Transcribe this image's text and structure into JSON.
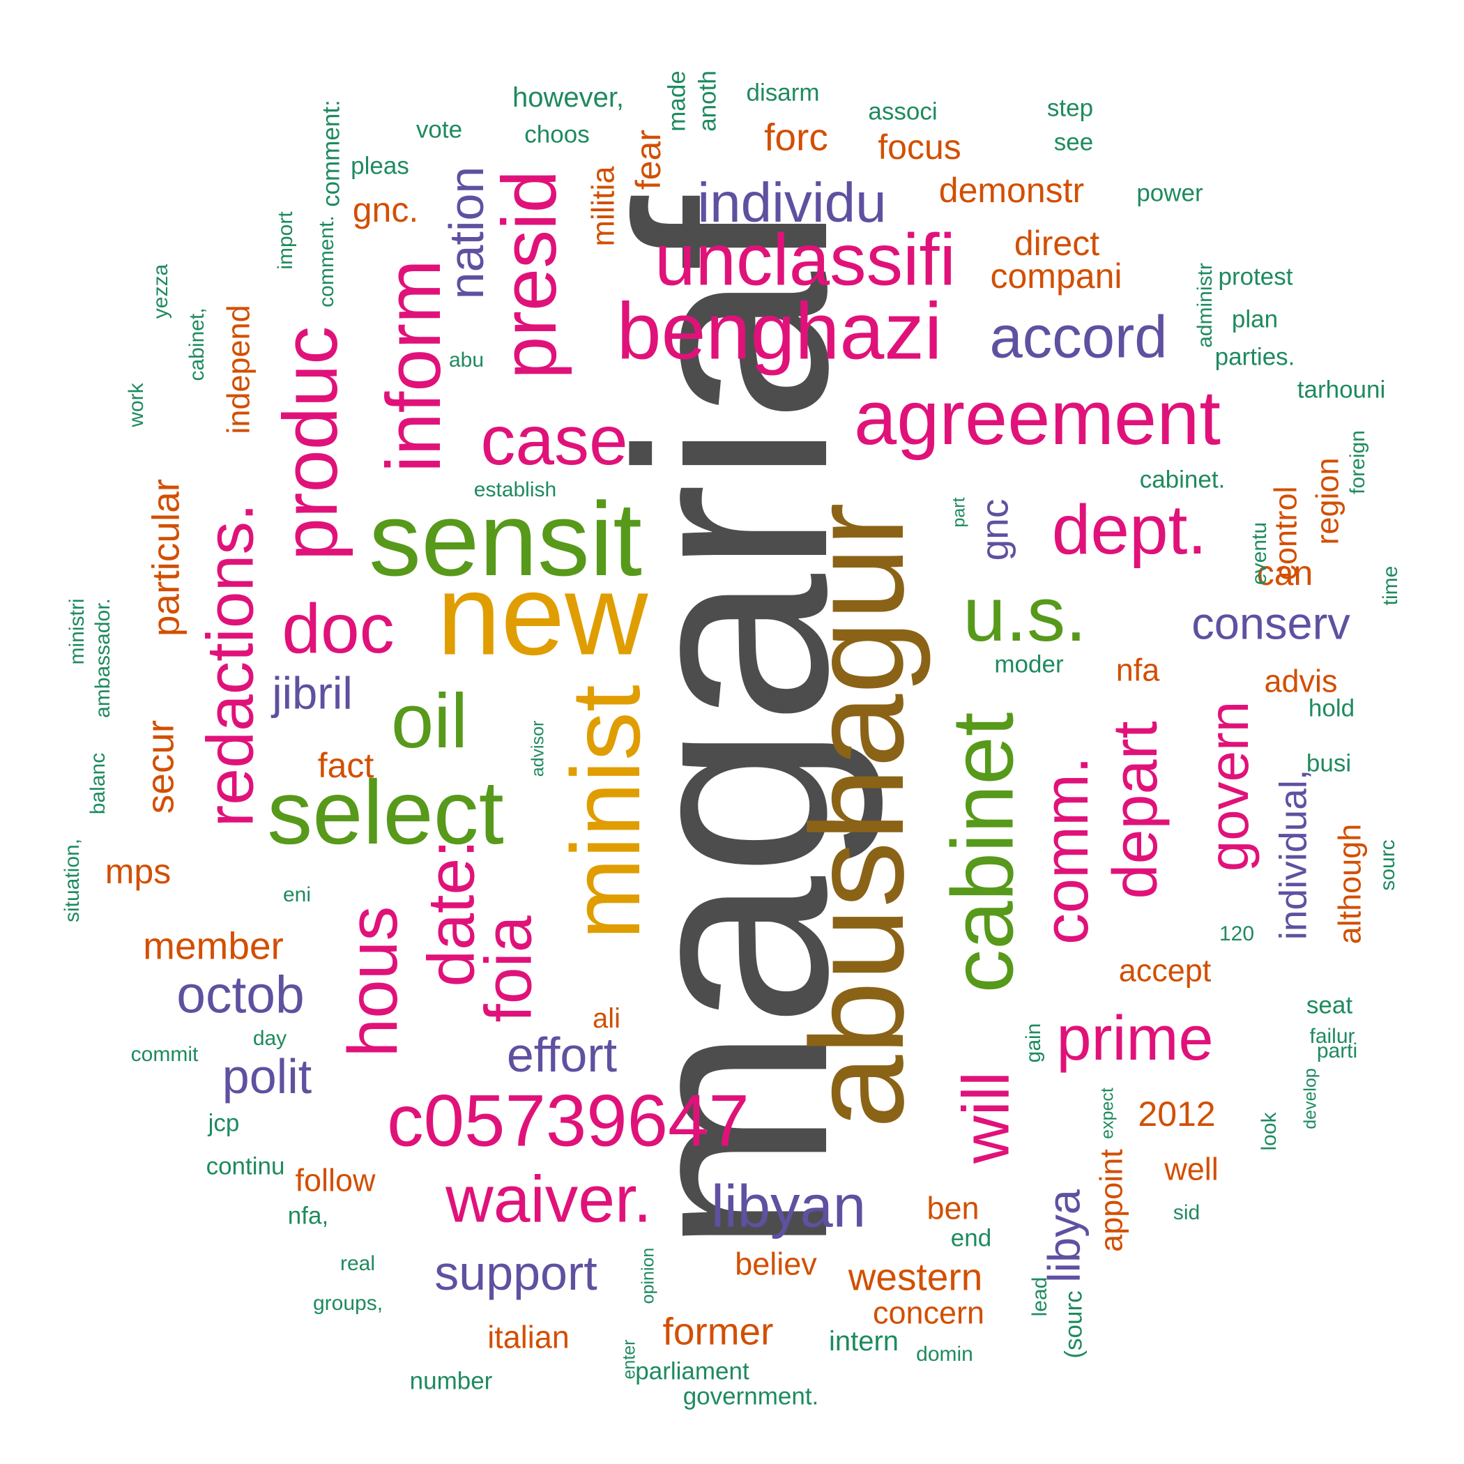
{
  "palette": {
    "gray": "#4d4d4d",
    "brown": "#8b6317",
    "gold": "#e09d00",
    "green": "#57991a",
    "magenta": "#e0127a",
    "purple": "#6050a0",
    "orange": "#d24f00",
    "teal": "#1e8a5e"
  },
  "words": [
    {
      "text": "magariaf",
      "color": "gray"
    },
    {
      "text": "abushagur",
      "color": "brown"
    },
    {
      "text": "new",
      "color": "gold"
    },
    {
      "text": "minist",
      "color": "gold"
    },
    {
      "text": "sensit",
      "color": "green"
    },
    {
      "text": "select",
      "color": "green"
    },
    {
      "text": "oil",
      "color": "green"
    },
    {
      "text": "cabinet",
      "color": "green"
    },
    {
      "text": "u.s.",
      "color": "green"
    },
    {
      "text": "benghazi",
      "color": "magenta"
    },
    {
      "text": "unclassifi",
      "color": "magenta"
    },
    {
      "text": "agreement",
      "color": "magenta"
    },
    {
      "text": "presid",
      "color": "magenta"
    },
    {
      "text": "inform",
      "color": "magenta"
    },
    {
      "text": "produc",
      "color": "magenta"
    },
    {
      "text": "redactions.",
      "color": "magenta"
    },
    {
      "text": "case",
      "color": "magenta"
    },
    {
      "text": "doc",
      "color": "magenta"
    },
    {
      "text": "dept.",
      "color": "magenta"
    },
    {
      "text": "hous",
      "color": "magenta"
    },
    {
      "text": "date:",
      "color": "magenta"
    },
    {
      "text": "foia",
      "color": "magenta"
    },
    {
      "text": "c05739647",
      "color": "magenta"
    },
    {
      "text": "waiver.",
      "color": "magenta"
    },
    {
      "text": "will",
      "color": "magenta"
    },
    {
      "text": "comm.",
      "color": "magenta"
    },
    {
      "text": "depart",
      "color": "magenta"
    },
    {
      "text": "govern",
      "color": "magenta"
    },
    {
      "text": "prime",
      "color": "magenta"
    },
    {
      "text": "individu",
      "color": "purple"
    },
    {
      "text": "accord",
      "color": "purple"
    },
    {
      "text": "nation",
      "color": "purple"
    },
    {
      "text": "gnc",
      "color": "purple"
    },
    {
      "text": "conserv",
      "color": "purple"
    },
    {
      "text": "jibril",
      "color": "purple"
    },
    {
      "text": "octob",
      "color": "purple"
    },
    {
      "text": "polit",
      "color": "purple"
    },
    {
      "text": "effort",
      "color": "purple"
    },
    {
      "text": "libyan",
      "color": "purple"
    },
    {
      "text": "support",
      "color": "purple"
    },
    {
      "text": "libya",
      "color": "purple"
    },
    {
      "text": "individual,",
      "color": "purple"
    },
    {
      "text": "forc",
      "color": "orange"
    },
    {
      "text": "focus",
      "color": "orange"
    },
    {
      "text": "fear",
      "color": "orange"
    },
    {
      "text": "militia",
      "color": "orange"
    },
    {
      "text": "gnc.",
      "color": "orange"
    },
    {
      "text": "demonstr",
      "color": "orange"
    },
    {
      "text": "direct",
      "color": "orange"
    },
    {
      "text": "compani",
      "color": "orange"
    },
    {
      "text": "independ",
      "color": "orange"
    },
    {
      "text": "particular",
      "color": "orange"
    },
    {
      "text": "secur",
      "color": "orange"
    },
    {
      "text": "fact",
      "color": "orange"
    },
    {
      "text": "mps",
      "color": "orange"
    },
    {
      "text": "member",
      "color": "orange"
    },
    {
      "text": "control",
      "color": "orange"
    },
    {
      "text": "region",
      "color": "orange"
    },
    {
      "text": "can",
      "color": "orange"
    },
    {
      "text": "nfa",
      "color": "orange"
    },
    {
      "text": "advis",
      "color": "orange"
    },
    {
      "text": "although",
      "color": "orange"
    },
    {
      "text": "accept",
      "color": "orange"
    },
    {
      "text": "ali",
      "color": "orange"
    },
    {
      "text": "2012",
      "color": "orange"
    },
    {
      "text": "follow",
      "color": "orange"
    },
    {
      "text": "well",
      "color": "orange"
    },
    {
      "text": "appoint",
      "color": "orange"
    },
    {
      "text": "ben",
      "color": "orange"
    },
    {
      "text": "believ",
      "color": "orange"
    },
    {
      "text": "western",
      "color": "orange"
    },
    {
      "text": "concern",
      "color": "orange"
    },
    {
      "text": "former",
      "color": "orange"
    },
    {
      "text": "italian",
      "color": "orange"
    },
    {
      "text": "however,",
      "color": "teal"
    },
    {
      "text": "made",
      "color": "teal"
    },
    {
      "text": "anoth",
      "color": "teal"
    },
    {
      "text": "disarm",
      "color": "teal"
    },
    {
      "text": "associ",
      "color": "teal"
    },
    {
      "text": "step",
      "color": "teal"
    },
    {
      "text": "see",
      "color": "teal"
    },
    {
      "text": "vote",
      "color": "teal"
    },
    {
      "text": "choos",
      "color": "teal"
    },
    {
      "text": "comment:",
      "color": "teal"
    },
    {
      "text": "pleas",
      "color": "teal"
    },
    {
      "text": "power",
      "color": "teal"
    },
    {
      "text": "import",
      "color": "teal"
    },
    {
      "text": "comment.",
      "color": "teal"
    },
    {
      "text": "administr",
      "color": "teal"
    },
    {
      "text": "protest",
      "color": "teal"
    },
    {
      "text": "plan",
      "color": "teal"
    },
    {
      "text": "parties.",
      "color": "teal"
    },
    {
      "text": "yezza",
      "color": "teal"
    },
    {
      "text": "cabinet,",
      "color": "teal"
    },
    {
      "text": "abu",
      "color": "teal"
    },
    {
      "text": "tarhouni",
      "color": "teal"
    },
    {
      "text": "work",
      "color": "teal"
    },
    {
      "text": "establish",
      "color": "teal"
    },
    {
      "text": "cabinet.",
      "color": "teal"
    },
    {
      "text": "foreign",
      "color": "teal"
    },
    {
      "text": "part",
      "color": "teal"
    },
    {
      "text": "eventu",
      "color": "teal"
    },
    {
      "text": "time",
      "color": "teal"
    },
    {
      "text": "ministri",
      "color": "teal"
    },
    {
      "text": "ambassador.",
      "color": "teal"
    },
    {
      "text": "moder",
      "color": "teal"
    },
    {
      "text": "hold",
      "color": "teal"
    },
    {
      "text": "busi",
      "color": "teal"
    },
    {
      "text": "advisor",
      "color": "teal"
    },
    {
      "text": "balanc",
      "color": "teal"
    },
    {
      "text": "situation,",
      "color": "teal"
    },
    {
      "text": "eni",
      "color": "teal"
    },
    {
      "text": "sourc",
      "color": "teal"
    },
    {
      "text": "120",
      "color": "teal"
    },
    {
      "text": "seat",
      "color": "teal"
    },
    {
      "text": "failur",
      "color": "teal"
    },
    {
      "text": "day",
      "color": "teal"
    },
    {
      "text": "commit",
      "color": "teal"
    },
    {
      "text": "gain",
      "color": "teal"
    },
    {
      "text": "parti",
      "color": "teal"
    },
    {
      "text": "develop",
      "color": "teal"
    },
    {
      "text": "jcp",
      "color": "teal"
    },
    {
      "text": "expect",
      "color": "teal"
    },
    {
      "text": "look",
      "color": "teal"
    },
    {
      "text": "continu",
      "color": "teal"
    },
    {
      "text": "nfa,",
      "color": "teal"
    },
    {
      "text": "sid",
      "color": "teal"
    },
    {
      "text": "end",
      "color": "teal"
    },
    {
      "text": "real",
      "color": "teal"
    },
    {
      "text": "opinion",
      "color": "teal"
    },
    {
      "text": "groups,",
      "color": "teal"
    },
    {
      "text": "lead",
      "color": "teal"
    },
    {
      "text": "(sourc",
      "color": "teal"
    },
    {
      "text": "intern",
      "color": "teal"
    },
    {
      "text": "domin",
      "color": "teal"
    },
    {
      "text": "enter",
      "color": "teal"
    },
    {
      "text": "parliament",
      "color": "teal"
    },
    {
      "text": "number",
      "color": "teal"
    },
    {
      "text": "government.",
      "color": "teal"
    }
  ]
}
